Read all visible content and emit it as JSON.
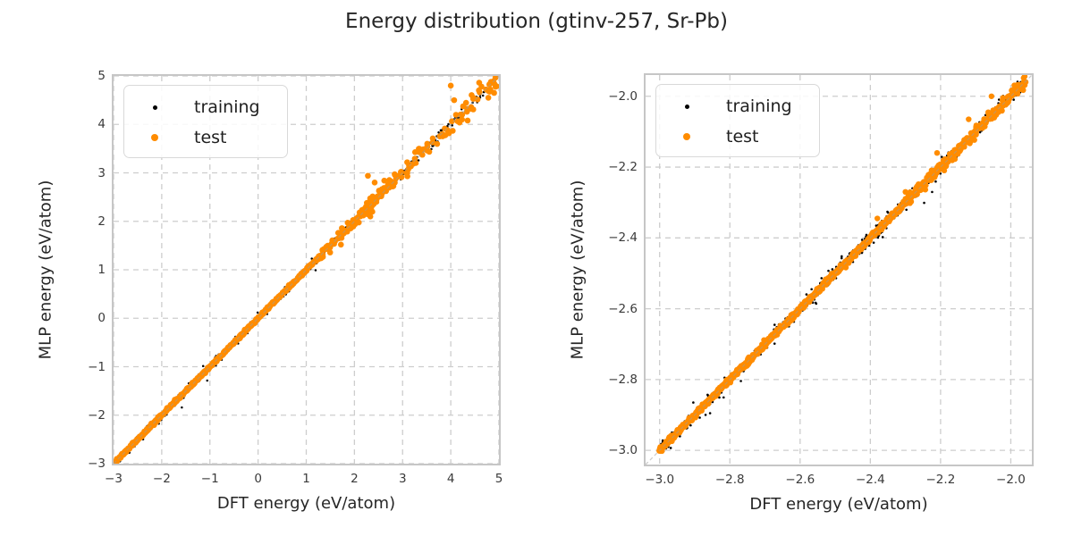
{
  "figure": {
    "title": "Energy distribution (gtinv-257, Sr-Pb)"
  },
  "legend": {
    "items": [
      {
        "label": "training",
        "color": "#000000"
      },
      {
        "label": "test",
        "color": "#ff8c00"
      }
    ]
  },
  "chart_data": [
    {
      "type": "scatter",
      "panel": "left",
      "title": "",
      "xlabel": "DFT energy (eV/atom)",
      "ylabel": "MLP energy (eV/atom)",
      "xlim": [
        -3,
        5
      ],
      "ylim": [
        -3,
        5
      ],
      "xticks": [
        -3,
        -2,
        -1,
        0,
        1,
        2,
        3,
        4,
        5
      ],
      "yticks": [
        -3,
        -2,
        -1,
        0,
        1,
        2,
        3,
        4,
        5
      ],
      "tick_format": "int",
      "grid": {
        "show": true,
        "line_style": "dashed",
        "color": "#cdcdcd"
      },
      "identity_line": {
        "show": true,
        "color": "#9e9e9e",
        "opacity": 0.55
      },
      "legend_position": "upper-left",
      "legend_entries": [
        "training",
        "test"
      ],
      "series": [
        {
          "name": "training",
          "color": "#000000",
          "marker_radius": 1.25,
          "relation": "y ~ x (parity)",
          "segments": [
            {
              "seed": 101,
              "count": 520,
              "x_range": [
                -2.95,
                4.93
              ],
              "noise_sigma": 0.045,
              "outlier_frac": 0.05,
              "outlier_mult": 2.5
            }
          ],
          "outliers": []
        },
        {
          "name": "test",
          "color": "#ff8c00",
          "marker_radius": 3.3,
          "relation": "y ~ x (parity)",
          "segments": [
            {
              "seed": 201,
              "count": 760,
              "x_range": [
                -2.98,
                1.3
              ],
              "noise_sigma": 0.013,
              "outlier_frac": 0.03,
              "outlier_mult": 2
            },
            {
              "seed": 202,
              "count": 135,
              "x_range": [
                1.3,
                2.8
              ],
              "noise_sigma": 0.05,
              "outlier_frac": 0.06,
              "outlier_mult": 2
            },
            {
              "seed": 203,
              "count": 75,
              "x_range": [
                2.8,
                4.96
              ],
              "noise_sigma": 0.085,
              "outlier_frac": 0.08,
              "outlier_mult": 2
            }
          ],
          "outliers": [
            [
              2.28,
              2.94
            ],
            [
              2.42,
              2.8
            ],
            [
              4.0,
              4.8
            ],
            [
              4.59,
              4.86
            ],
            [
              4.07,
              4.5
            ],
            [
              2.33,
              2.1
            ],
            [
              3.1,
              2.93
            ],
            [
              4.35,
              4.08
            ],
            [
              4.78,
              4.55
            ],
            [
              1.72,
              1.52
            ],
            [
              2.62,
              2.84
            ],
            [
              4.9,
              4.65
            ]
          ]
        }
      ]
    },
    {
      "type": "scatter",
      "panel": "right",
      "title": "",
      "xlabel": "DFT energy (eV/atom)",
      "ylabel": "MLP energy (eV/atom)",
      "xlim": [
        -3.04,
        -1.94
      ],
      "ylim": [
        -3.04,
        -1.94
      ],
      "xticks": [
        -3.0,
        -2.8,
        -2.6,
        -2.4,
        -2.2,
        -2.0
      ],
      "yticks": [
        -3.0,
        -2.8,
        -2.6,
        -2.4,
        -2.2,
        -2.0
      ],
      "tick_format": "1f",
      "grid": {
        "show": true,
        "line_style": "dashed",
        "color": "#cdcdcd"
      },
      "identity_line": {
        "show": true,
        "color": "#9e9e9e",
        "opacity": 0.55
      },
      "legend_position": "upper-left",
      "legend_entries": [
        "training",
        "test"
      ],
      "series": [
        {
          "name": "training",
          "color": "#000000",
          "marker_radius": 1.3,
          "relation": "y ~ x (parity)",
          "segments": [
            {
              "seed": 301,
              "count": 640,
              "x_range": [
                -3.0,
                -1.958
              ],
              "noise_sigma": 0.009,
              "outlier_frac": 0.08,
              "outlier_mult": 2.5
            }
          ],
          "outliers": []
        },
        {
          "name": "test",
          "color": "#ff8c00",
          "marker_radius": 3.2,
          "relation": "y ~ x (parity)",
          "segments": [
            {
              "seed": 401,
              "count": 1050,
              "x_range": [
                -3.002,
                -2.3
              ],
              "noise_sigma": 0.0035,
              "outlier_frac": 0.02,
              "outlier_mult": 2
            },
            {
              "seed": 402,
              "count": 300,
              "x_range": [
                -2.3,
                -1.957
              ],
              "noise_sigma": 0.007,
              "outlier_frac": 0.05,
              "outlier_mult": 2
            }
          ],
          "outliers": [
            [
              -2.38,
              -2.345
            ],
            [
              -2.12,
              -2.065
            ],
            [
              -2.21,
              -2.16
            ],
            [
              -2.055,
              -2.0
            ],
            [
              -2.3,
              -2.27
            ]
          ]
        }
      ]
    }
  ]
}
